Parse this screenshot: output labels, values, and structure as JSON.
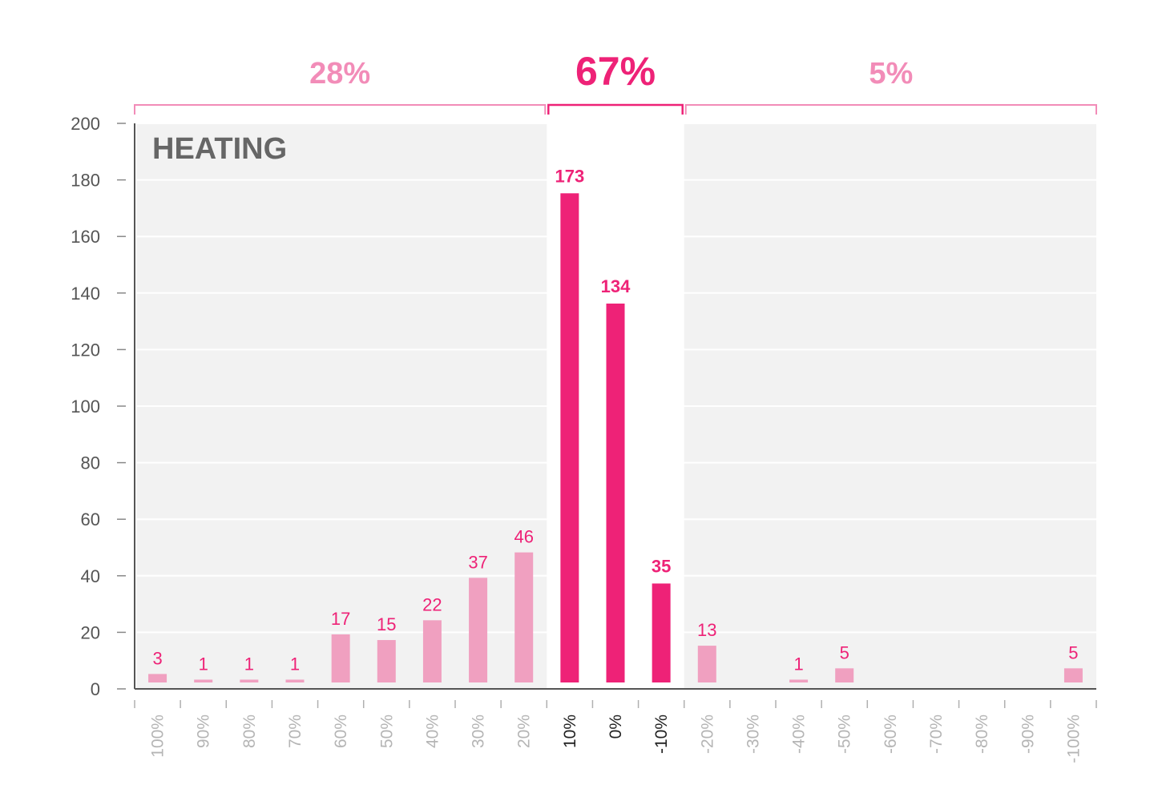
{
  "chart_data": {
    "type": "bar",
    "title": "HEATING",
    "xlabel": "",
    "ylabel": "",
    "ylim": [
      0,
      200
    ],
    "yticks": [
      0,
      20,
      40,
      60,
      80,
      100,
      120,
      140,
      160,
      180,
      200
    ],
    "categories": [
      "100%",
      "90%",
      "80%",
      "70%",
      "60%",
      "50%",
      "40%",
      "30%",
      "20%",
      "10%",
      "0%",
      "-10%",
      "-20%",
      "-30%",
      "-40%",
      "-50%",
      "-60%",
      "-70%",
      "-80%",
      "-90%",
      "-100%"
    ],
    "values": [
      3,
      1,
      1,
      1,
      17,
      15,
      22,
      37,
      46,
      173,
      134,
      35,
      13,
      0,
      1,
      5,
      0,
      0,
      0,
      0,
      5
    ],
    "value_labels": [
      "3",
      "1",
      "1",
      "1",
      "17",
      "15",
      "22",
      "37",
      "46",
      "173",
      "134",
      "35",
      "13",
      "",
      "1",
      "5",
      "",
      "",
      "",
      "",
      "5"
    ],
    "groups": [
      {
        "name": "left",
        "label": "28%",
        "start": 0,
        "end": 8,
        "highlight": false
      },
      {
        "name": "center",
        "label": "67%",
        "start": 9,
        "end": 11,
        "highlight": true
      },
      {
        "name": "right",
        "label": "5%",
        "start": 12,
        "end": 20,
        "highlight": false
      }
    ],
    "colors": {
      "highlight": "#ee2277",
      "muted": "#f0a0c0",
      "bracket_muted": "#f28cb8",
      "group_label_muted": "#f28cb8",
      "panel": "#f2f2f2",
      "axis": "#555555",
      "tick_label": "#555555",
      "tick_label_muted": "#b5b5b5",
      "title": "#666666"
    },
    "grid": true
  }
}
